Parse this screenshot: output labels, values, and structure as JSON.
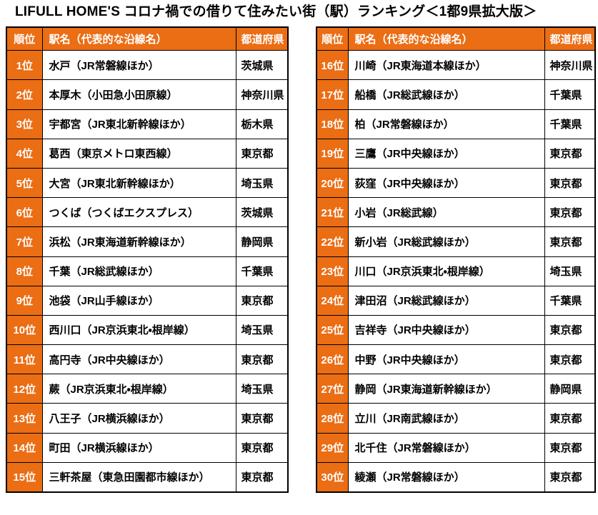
{
  "title": "LIFULL HOME'S コロナ禍での借りて住みたい街（駅）ランキング＜1都9県拡大版＞",
  "colors": {
    "accent_orange": "#EB6D14",
    "border_black": "#000000",
    "header_text": "#FFFFFF",
    "body_text": "#000000",
    "background": "#FFFFFF"
  },
  "headers": {
    "rank": "順位",
    "station": "駅名（代表的な沿線名）",
    "prefecture": "都道府県"
  },
  "ranking": {
    "left": [
      {
        "rank": "1位",
        "station": "水戸（JR常磐線ほか）",
        "prefecture": "茨城県"
      },
      {
        "rank": "2位",
        "station": "本厚木（小田急小田原線）",
        "prefecture": "神奈川県"
      },
      {
        "rank": "3位",
        "station": "宇都宮（JR東北新幹線ほか）",
        "prefecture": "栃木県"
      },
      {
        "rank": "4位",
        "station": "葛西（東京メトロ東西線）",
        "prefecture": "東京都"
      },
      {
        "rank": "5位",
        "station": "大宮（JR東北新幹線ほか）",
        "prefecture": "埼玉県"
      },
      {
        "rank": "6位",
        "station": "つくば（つくばエクスプレス）",
        "prefecture": "茨城県"
      },
      {
        "rank": "7位",
        "station": "浜松（JR東海道新幹線ほか）",
        "prefecture": "静岡県"
      },
      {
        "rank": "8位",
        "station": "千葉（JR総武線ほか）",
        "prefecture": "千葉県"
      },
      {
        "rank": "9位",
        "station": "池袋（JR山手線ほか）",
        "prefecture": "東京都"
      },
      {
        "rank": "10位",
        "station": "西川口（JR京浜東北・根岸線）",
        "prefecture": "埼玉県"
      },
      {
        "rank": "11位",
        "station": "高円寺（JR中央線ほか）",
        "prefecture": "東京都"
      },
      {
        "rank": "12位",
        "station": "蕨（JR京浜東北・根岸線）",
        "prefecture": "埼玉県"
      },
      {
        "rank": "13位",
        "station": "八王子（JR横浜線ほか）",
        "prefecture": "東京都"
      },
      {
        "rank": "14位",
        "station": "町田（JR横浜線ほか）",
        "prefecture": "東京都"
      },
      {
        "rank": "15位",
        "station": "三軒茶屋（東急田園都市線ほか）",
        "prefecture": "東京都"
      }
    ],
    "right": [
      {
        "rank": "16位",
        "station": "川崎（JR東海道本線ほか）",
        "prefecture": "神奈川県"
      },
      {
        "rank": "17位",
        "station": "船橋（JR総武線ほか）",
        "prefecture": "千葉県"
      },
      {
        "rank": "18位",
        "station": "柏（JR常磐線ほか）",
        "prefecture": "千葉県"
      },
      {
        "rank": "19位",
        "station": "三鷹（JR中央線ほか）",
        "prefecture": "東京都"
      },
      {
        "rank": "20位",
        "station": "荻窪（JR中央線ほか）",
        "prefecture": "東京都"
      },
      {
        "rank": "21位",
        "station": "小岩（JR総武線）",
        "prefecture": "東京都"
      },
      {
        "rank": "22位",
        "station": "新小岩（JR総武線ほか）",
        "prefecture": "東京都"
      },
      {
        "rank": "23位",
        "station": "川口（JR京浜東北・根岸線）",
        "prefecture": "埼玉県"
      },
      {
        "rank": "24位",
        "station": "津田沼（JR総武線ほか）",
        "prefecture": "千葉県"
      },
      {
        "rank": "25位",
        "station": "吉祥寺（JR中央線ほか）",
        "prefecture": "東京都"
      },
      {
        "rank": "26位",
        "station": "中野（JR中央線ほか）",
        "prefecture": "東京都"
      },
      {
        "rank": "27位",
        "station": "静岡（JR東海道新幹線ほか）",
        "prefecture": "静岡県"
      },
      {
        "rank": "28位",
        "station": "立川（JR南武線ほか）",
        "prefecture": "東京都"
      },
      {
        "rank": "29位",
        "station": "北千住（JR常磐線ほか）",
        "prefecture": "東京都"
      },
      {
        "rank": "30位",
        "station": "綾瀬（JR常磐線ほか）",
        "prefecture": "東京都"
      }
    ]
  }
}
